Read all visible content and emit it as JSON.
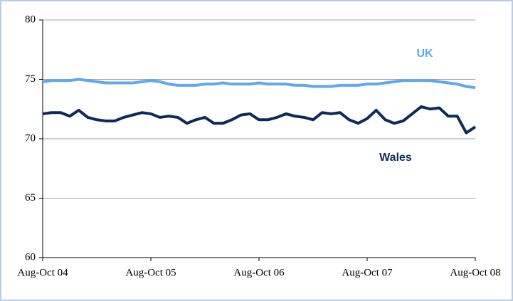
{
  "chart_data": {
    "type": "line",
    "categories": [
      "Aug-Oct 04",
      null,
      null,
      null,
      null,
      null,
      null,
      null,
      null,
      null,
      null,
      null,
      "Aug-Oct 05",
      null,
      null,
      null,
      null,
      null,
      null,
      null,
      null,
      null,
      null,
      null,
      "Aug-Oct 06",
      null,
      null,
      null,
      null,
      null,
      null,
      null,
      null,
      null,
      null,
      null,
      "Aug-Oct 07",
      null,
      null,
      null,
      null,
      null,
      null,
      null,
      null,
      null,
      null,
      null,
      "Aug-Oct 08"
    ],
    "series": [
      {
        "name": "UK",
        "color": "#5ea8ee",
        "values": [
          74.8,
          74.9,
          74.9,
          74.9,
          75.0,
          74.9,
          74.8,
          74.7,
          74.7,
          74.7,
          74.7,
          74.8,
          74.9,
          74.8,
          74.6,
          74.5,
          74.5,
          74.5,
          74.6,
          74.6,
          74.7,
          74.6,
          74.6,
          74.6,
          74.7,
          74.6,
          74.6,
          74.6,
          74.5,
          74.5,
          74.4,
          74.4,
          74.4,
          74.5,
          74.5,
          74.5,
          74.6,
          74.6,
          74.7,
          74.8,
          74.9,
          74.9,
          74.9,
          74.9,
          74.8,
          74.7,
          74.6,
          74.4,
          74.3
        ]
      },
      {
        "name": "Wales",
        "color": "#0f2a5a",
        "values": [
          72.1,
          72.2,
          72.2,
          71.9,
          72.4,
          71.8,
          71.6,
          71.5,
          71.5,
          71.8,
          72.0,
          72.2,
          72.1,
          71.8,
          71.9,
          71.8,
          71.3,
          71.6,
          71.8,
          71.3,
          71.3,
          71.6,
          72.0,
          72.1,
          71.6,
          71.6,
          71.8,
          72.1,
          71.9,
          71.8,
          71.6,
          72.2,
          72.1,
          72.2,
          71.6,
          71.3,
          71.7,
          72.4,
          71.6,
          71.3,
          71.5,
          72.1,
          72.7,
          72.5,
          72.6,
          71.9,
          71.9,
          70.5,
          71.0
        ]
      }
    ],
    "ylim": [
      60,
      80
    ],
    "yticks": [
      60,
      65,
      70,
      75,
      80
    ],
    "grid": true
  }
}
